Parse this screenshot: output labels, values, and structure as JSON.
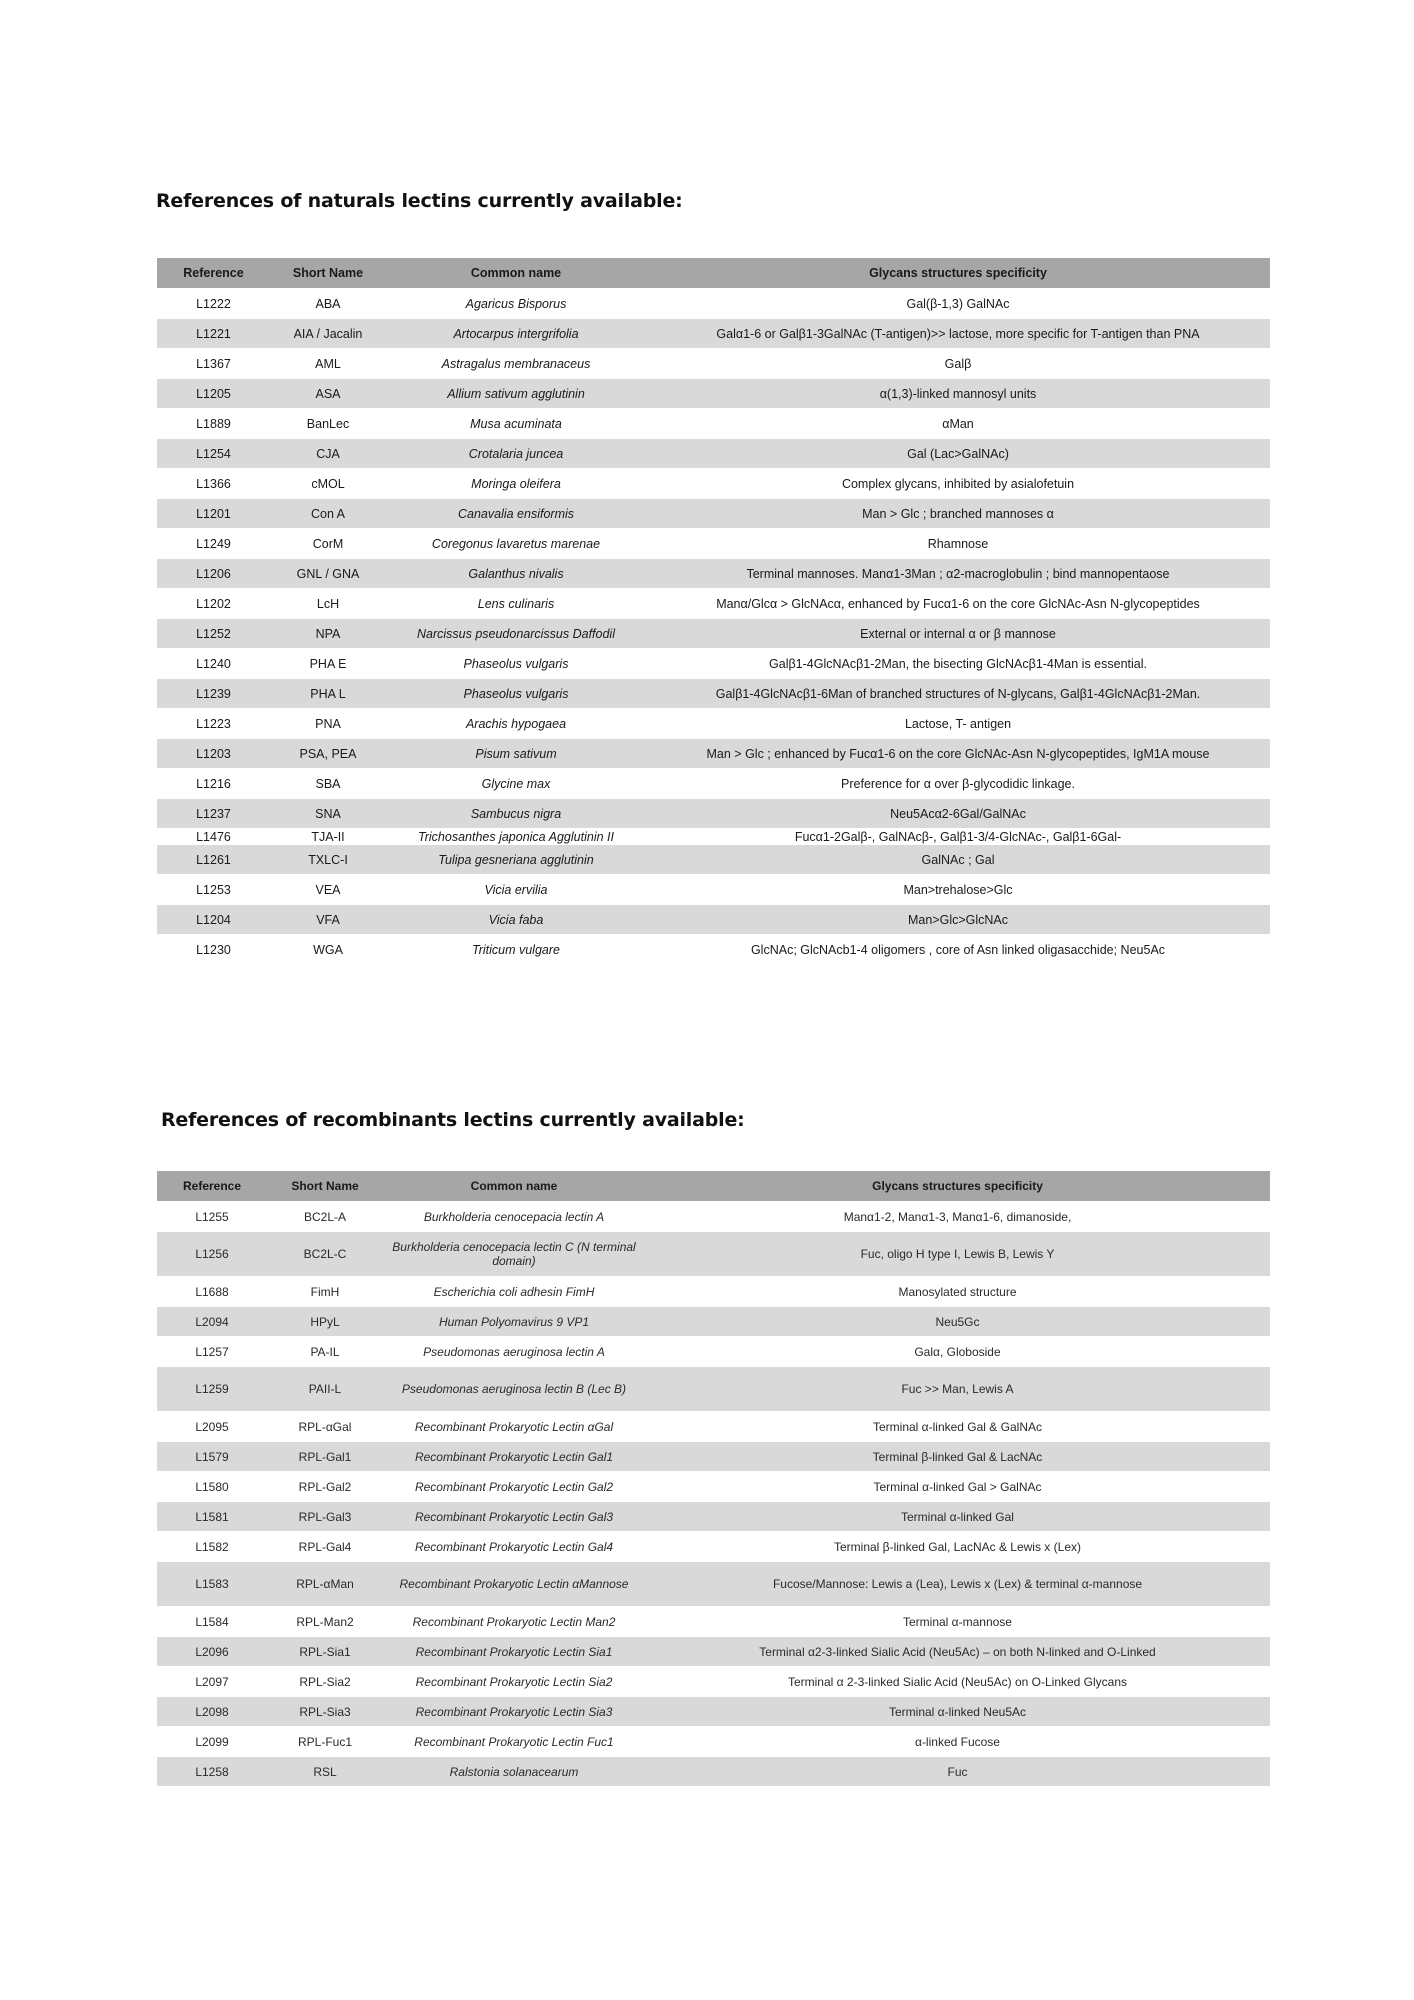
{
  "natural": {
    "title": "References of naturals lectins currently available:",
    "headers": [
      "Reference",
      "Short Name",
      "Common name",
      "Glycans structures specificity"
    ],
    "rows": [
      [
        "L1222",
        "ABA",
        "Agaricus Bisporus",
        "Gal(β-1,3) GalNAc"
      ],
      [
        "L1221",
        "AIA / Jacalin",
        "Artocarpus intergrifolia",
        "Galα1-6 or Galβ1-3GalNAc (T-antigen)>> lactose, more specific for T-antigen than PNA"
      ],
      [
        "L1367",
        "AML",
        "Astragalus membranaceus",
        "Galβ"
      ],
      [
        "L1205",
        "ASA",
        "Allium sativum agglutinin",
        "α(1,3)-linked mannosyl units"
      ],
      [
        "L1889",
        "BanLec",
        "Musa acuminata",
        "αMan"
      ],
      [
        "L1254",
        "CJA",
        "Crotalaria juncea",
        "Gal (Lac>GalNAc)"
      ],
      [
        "L1366",
        "cMOL",
        "Moringa oleifera",
        "Complex glycans, inhibited by asialofetuin"
      ],
      [
        "L1201",
        "Con A",
        "Canavalia ensiformis",
        "Man > Glc ; branched mannoses α"
      ],
      [
        "L1249",
        "CorM",
        "Coregonus lavaretus marenae",
        "Rhamnose"
      ],
      [
        "L1206",
        "GNL / GNA",
        "Galanthus nivalis",
        "Terminal mannoses. Manα1-3Man ; α2-macroglobulin ; bind mannopentaose"
      ],
      [
        "L1202",
        "LcH",
        "Lens culinaris",
        "Manα/Glcα > GlcNAcα, enhanced by Fucα1-6 on the core GlcNAc-Asn N-glycopeptides"
      ],
      [
        "L1252",
        "NPA",
        "Narcissus pseudonarcissus Daffodil",
        "External or internal α or β mannose"
      ],
      [
        "L1240",
        "PHA E",
        "Phaseolus vulgaris",
        "Galβ1-4GlcNAcβ1-2Man, the bisecting GlcNAcβ1-4Man is essential."
      ],
      [
        "L1239",
        "PHA L",
        "Phaseolus vulgaris",
        "Galβ1-4GlcNAcβ1-6Man of branched structures of N-glycans, Galβ1-4GlcNAcβ1-2Man."
      ],
      [
        "L1223",
        "PNA",
        "Arachis hypogaea",
        "Lactose, T- antigen"
      ],
      [
        "L1203",
        "PSA, PEA",
        "Pisum sativum",
        "Man > Glc ; enhanced by Fucα1-6 on the core GlcNAc-Asn N-glycopeptides, IgM1A mouse"
      ],
      [
        "L1216",
        "SBA",
        "Glycine max",
        "Preference for α over β-glycodidic linkage."
      ],
      [
        "L1237",
        "SNA",
        "Sambucus nigra",
        "Neu5Acα2-6Gal/GalNAc"
      ],
      [
        "L1476",
        "TJA-II",
        "Trichosanthes japonica Agglutinin II",
        "Fucα1-2Galβ-, GalNAcβ-, Galβ1-3/4-GlcNAc-, Galβ1-6Gal-"
      ],
      [
        "L1261",
        "TXLC-I",
        "Tulipa gesneriana agglutinin",
        "GalNAc ; Gal"
      ],
      [
        "L1253",
        "VEA",
        "Vicia ervilia",
        "Man>trehalose>Glc"
      ],
      [
        "L1204",
        "VFA",
        "Vicia faba",
        "Man>Glc>GlcNAc"
      ],
      [
        "L1230",
        "WGA",
        "Triticum vulgare",
        "GlcNAc; GlcNAcb1-4 oligomers , core of Asn linked oligasacchide; Neu5Ac"
      ]
    ]
  },
  "recombinant": {
    "title": "References of recombinants lectins currently available:",
    "headers": [
      "Reference",
      "Short Name",
      "Common name",
      "Glycans structures specificity"
    ],
    "rows": [
      [
        "L1255",
        "BC2L-A",
        "Burkholderia cenocepacia lectin A",
        "Manα1-2, Manα1-3, Manα1-6, dimanoside,"
      ],
      [
        "L1256",
        "BC2L-C",
        "Burkholderia cenocepacia lectin C (N terminal domain)",
        "Fuc, oligo H type I, Lewis B, Lewis Y"
      ],
      [
        "L1688",
        "FimH",
        "Escherichia coli adhesin FimH",
        "Manosylated structure"
      ],
      [
        "L2094",
        "HPyL",
        "Human Polyomavirus 9 VP1",
        "Neu5Gc"
      ],
      [
        "L1257",
        "PA-IL",
        "Pseudomonas aeruginosa lectin A",
        "Galα, Globoside"
      ],
      [
        "L1259",
        "PAII-L",
        "Pseudomonas aeruginosa lectin B (Lec B)",
        "Fuc >> Man, Lewis A"
      ],
      [
        "L2095",
        "RPL-αGal",
        "Recombinant Prokaryotic Lectin αGal",
        "Terminal α-linked Gal & GalNAc"
      ],
      [
        "L1579",
        "RPL-Gal1",
        "Recombinant Prokaryotic Lectin Gal1",
        "Terminal β-linked Gal & LacNAc"
      ],
      [
        "L1580",
        "RPL-Gal2",
        "Recombinant Prokaryotic Lectin Gal2",
        "Terminal α-linked Gal > GalNAc"
      ],
      [
        "L1581",
        "RPL-Gal3",
        "Recombinant Prokaryotic Lectin Gal3",
        "Terminal α-linked Gal"
      ],
      [
        "L1582",
        "RPL-Gal4",
        "Recombinant Prokaryotic Lectin Gal4",
        "Terminal β-linked Gal, LacNAc & Lewis x (Lex)"
      ],
      [
        "L1583",
        "RPL-αMan",
        "Recombinant Prokaryotic Lectin αMannose",
        "Fucose/Mannose: Lewis a (Lea), Lewis x (Lex) & terminal α-mannose"
      ],
      [
        "L1584",
        "RPL-Man2",
        "Recombinant Prokaryotic Lectin Man2",
        "Terminal α-mannose"
      ],
      [
        "L2096",
        "RPL-Sia1",
        "Recombinant Prokaryotic Lectin Sia1",
        "Terminal α2-3-linked Sialic Acid (Neu5Ac) – on both N-linked and O-Linked"
      ],
      [
        "L2097",
        "RPL-Sia2",
        "Recombinant Prokaryotic Lectin Sia2",
        "Terminal α 2-3-linked Sialic Acid (Neu5Ac) on O-Linked Glycans"
      ],
      [
        "L2098",
        "RPL-Sia3",
        "Recombinant Prokaryotic Lectin Sia3",
        "Terminal α-linked Neu5Ac"
      ],
      [
        "L2099",
        "RPL-Fuc1",
        "Recombinant Prokaryotic Lectin Fuc1",
        "α-linked Fucose"
      ],
      [
        "L1258",
        "RSL",
        "Ralstonia solanacearum",
        "Fuc"
      ]
    ]
  }
}
